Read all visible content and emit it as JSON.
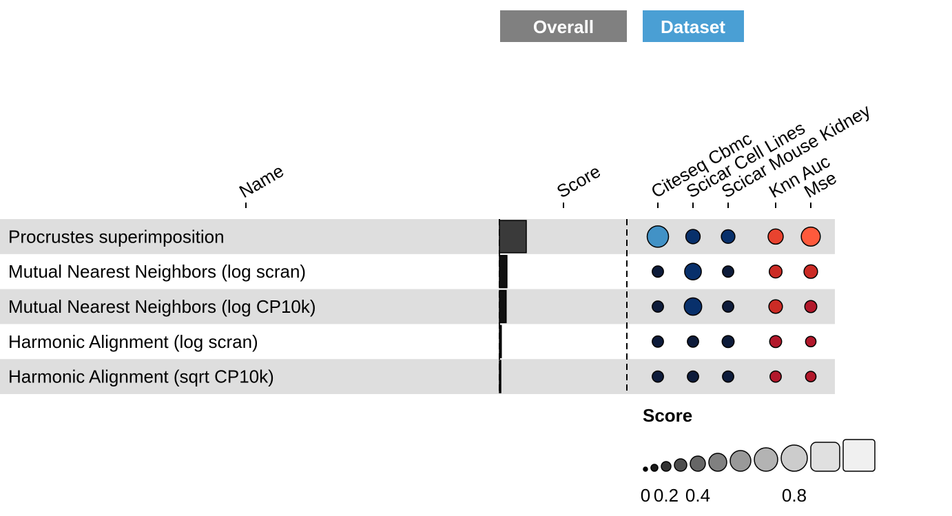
{
  "groups": {
    "overall": {
      "label": "Overall",
      "color": "#808080"
    },
    "dataset": {
      "label": "Dataset",
      "color": "#4a9fd4"
    }
  },
  "columns": {
    "name": "Name",
    "score": "Score",
    "datasets": [
      "Citeseq Cbmc",
      "Scicar Cell Lines",
      "Scicar Mouse Kidney"
    ],
    "metrics": [
      "Knn Auc",
      "Mse"
    ]
  },
  "chart_data": {
    "type": "table",
    "title": "",
    "rows": [
      {
        "name": "Procrustes superimposition",
        "score": 1.0,
        "datasets": [
          1.0,
          0.55,
          0.5
        ],
        "metrics": [
          0.6,
          0.85
        ]
      },
      {
        "name": "Mutual Nearest Neighbors (log scran)",
        "score": 0.28,
        "datasets": [
          0.35,
          0.7,
          0.35
        ],
        "metrics": [
          0.45,
          0.5
        ]
      },
      {
        "name": "Mutual Nearest Neighbors (log CP10k)",
        "score": 0.25,
        "datasets": [
          0.35,
          0.75,
          0.35
        ],
        "metrics": [
          0.5,
          0.4
        ]
      },
      {
        "name": "Harmonic Alignment (log scran)",
        "score": 0.07,
        "datasets": [
          0.35,
          0.35,
          0.4
        ],
        "metrics": [
          0.4,
          0.3
        ]
      },
      {
        "name": "Harmonic Alignment (sqrt CP10k)",
        "score": 0.05,
        "datasets": [
          0.35,
          0.35,
          0.35
        ],
        "metrics": [
          0.35,
          0.3
        ]
      }
    ],
    "colors": {
      "bar": "#3a3a3a",
      "row_shade": "#dedede",
      "dataset_scale": [
        "#0d1b3a",
        "#08306b",
        "#2171b5",
        "#4292c6"
      ],
      "metric_scale": [
        "#b2182b",
        "#cb2b25",
        "#e8432f",
        "#ff5a3c"
      ]
    }
  },
  "legend": {
    "title": "Score",
    "tick_labels": [
      "0",
      "0.2",
      "0.4",
      "0.8"
    ],
    "tick_values": [
      0,
      0.2,
      0.4,
      0.8
    ],
    "levels": [
      0,
      0.1,
      0.2,
      0.3,
      0.4,
      0.5,
      0.6,
      0.7,
      0.8,
      0.9,
      1.0
    ],
    "colors": [
      "#000000",
      "#1a1a1a",
      "#333333",
      "#4d4d4d",
      "#666666",
      "#808080",
      "#999999",
      "#b3b3b3",
      "#cccccc",
      "#e0e0e0",
      "#f0f0f0"
    ]
  }
}
